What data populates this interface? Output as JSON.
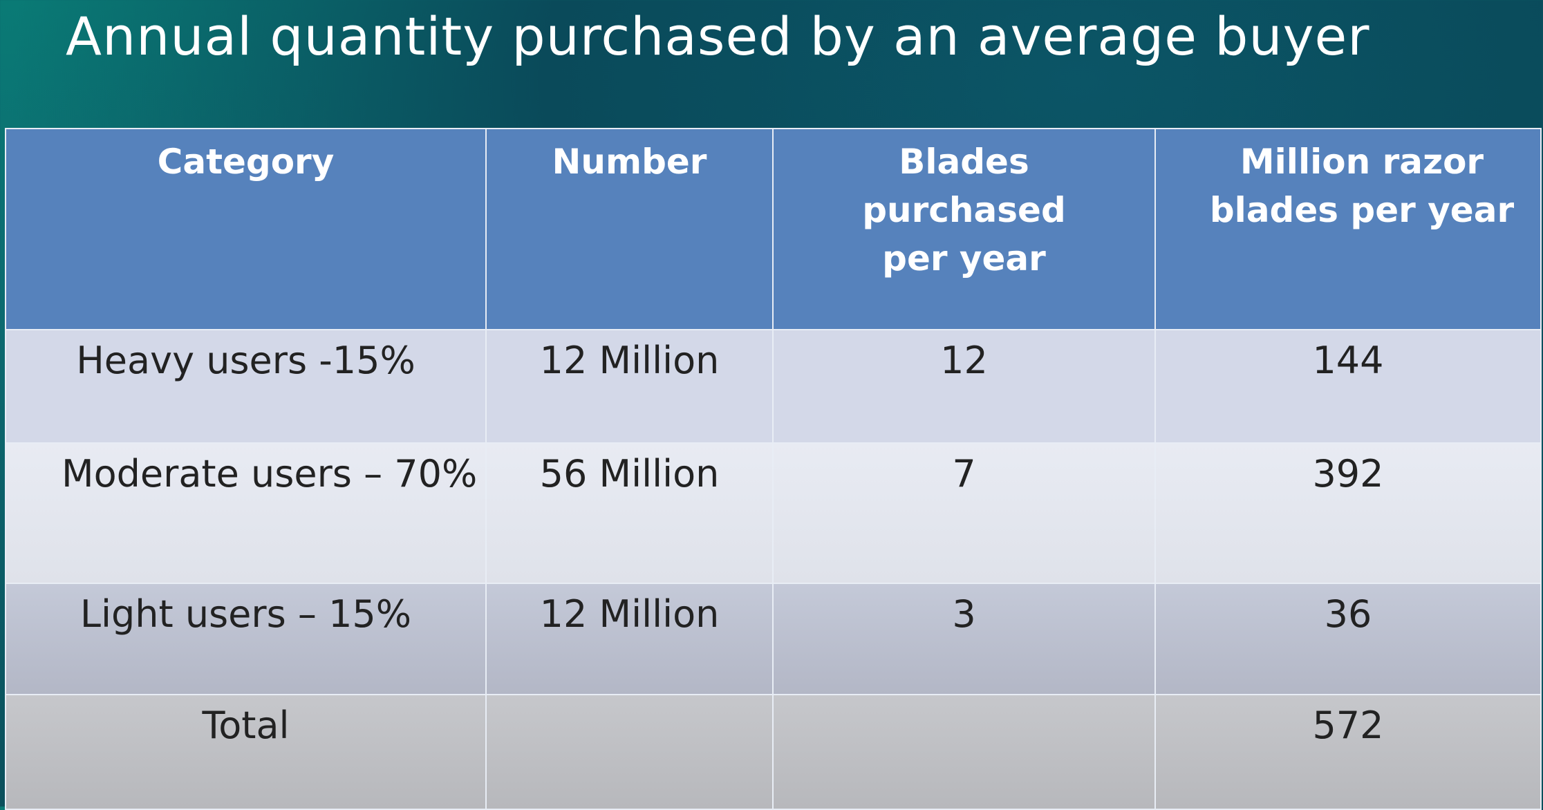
{
  "title": "Annual quantity purchased by an average buyer",
  "table": {
    "header": [
      "Category",
      "Number",
      "Blades purchased per year",
      "Million razor blades per year"
    ],
    "rows": [
      [
        "Heavy users -15%",
        "12 Million",
        "12",
        "144"
      ],
      [
        "Moderate users – 70%",
        "56 Million",
        "7",
        "392"
      ],
      [
        "Light users – 15%",
        "12 Million",
        "3",
        "36"
      ],
      [
        "Total",
        null,
        null,
        "572"
      ]
    ]
  }
}
